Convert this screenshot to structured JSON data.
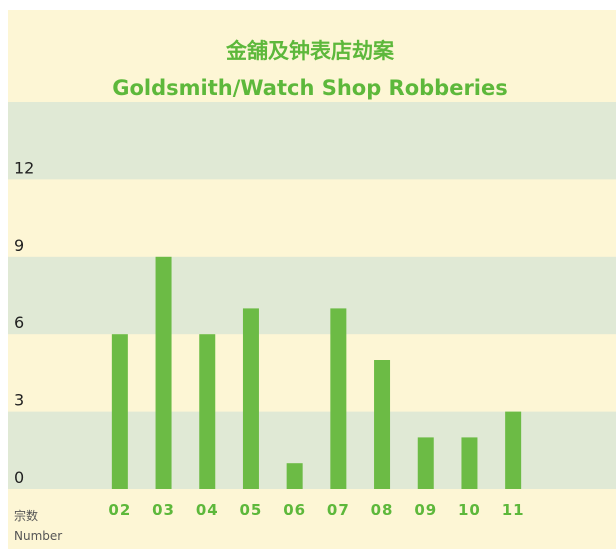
{
  "chart_data": {
    "type": "bar",
    "title": "金舖及钟表店劫案",
    "subtitle": "Goldsmith/Watch Shop Robberies",
    "ylabel": [
      "宗数",
      "Number"
    ],
    "categories": [
      "02",
      "03",
      "04",
      "05",
      "06",
      "07",
      "08",
      "09",
      "10",
      "11"
    ],
    "values": [
      6,
      9,
      6,
      7,
      1,
      7,
      5,
      2,
      2,
      3
    ],
    "color": "#6cbb45",
    "ylim": [
      0,
      15
    ],
    "yticks": [
      0,
      3,
      6,
      9,
      12
    ],
    "grid": true
  }
}
